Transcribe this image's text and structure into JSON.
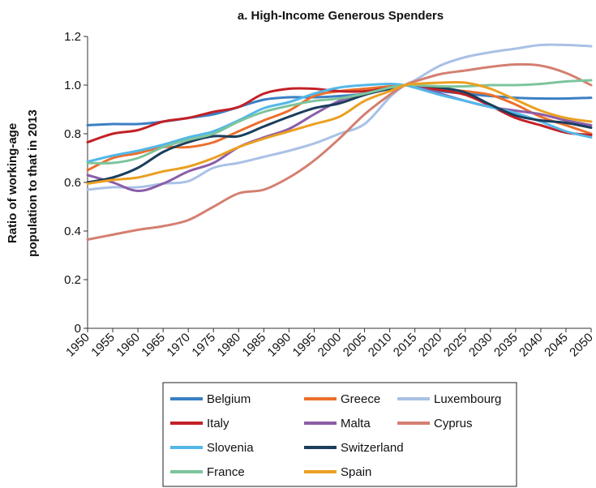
{
  "chart_data": {
    "type": "line",
    "title": "a. High-Income Generous Spenders",
    "xlabel": "",
    "ylabel": [
      "Ratio of working-age",
      "population to that in 2013"
    ],
    "xlim": [
      1950,
      2050
    ],
    "ylim": [
      0,
      1.2
    ],
    "x_ticks": [
      "1950",
      "1955",
      "1960",
      "1965",
      "1970",
      "1975",
      "1980",
      "1985",
      "1990",
      "1995",
      "2000",
      "2005",
      "2010",
      "2015",
      "2020",
      "2025",
      "2030",
      "2035",
      "2040",
      "2045",
      "2050"
    ],
    "y_ticks": [
      "0",
      "0.2",
      "0.4",
      "0.6",
      "0.8",
      "1.0",
      "1.2"
    ],
    "grid": false,
    "legend_position": "bottom",
    "x": [
      1950,
      1955,
      1960,
      1965,
      1970,
      1975,
      1980,
      1985,
      1990,
      1995,
      2000,
      2005,
      2010,
      2013,
      2015,
      2020,
      2025,
      2030,
      2035,
      2040,
      2045,
      2050
    ],
    "series": [
      {
        "name": "Belgium",
        "color": "#3b7fc4",
        "values": [
          0.835,
          0.84,
          0.84,
          0.85,
          0.865,
          0.88,
          0.91,
          0.94,
          0.95,
          0.95,
          0.955,
          0.965,
          0.99,
          1.0,
          0.99,
          0.975,
          0.965,
          0.955,
          0.948,
          0.945,
          0.945,
          0.948
        ]
      },
      {
        "name": "Greece",
        "color": "#ec6f2c",
        "values": [
          0.65,
          0.7,
          0.72,
          0.745,
          0.745,
          0.765,
          0.81,
          0.855,
          0.895,
          0.955,
          0.975,
          0.985,
          0.995,
          1.0,
          0.995,
          0.985,
          0.975,
          0.96,
          0.92,
          0.87,
          0.835,
          0.8
        ]
      },
      {
        "name": "Luxembourg",
        "color": "#a9c1e6",
        "values": [
          0.57,
          0.58,
          0.58,
          0.595,
          0.605,
          0.66,
          0.68,
          0.705,
          0.73,
          0.76,
          0.8,
          0.84,
          0.95,
          1.0,
          1.02,
          1.08,
          1.115,
          1.135,
          1.15,
          1.165,
          1.165,
          1.16
        ]
      },
      {
        "name": "Italy",
        "color": "#c32026",
        "values": [
          0.765,
          0.8,
          0.815,
          0.85,
          0.865,
          0.89,
          0.91,
          0.965,
          0.985,
          0.985,
          0.975,
          0.975,
          0.99,
          1.0,
          0.995,
          0.98,
          0.96,
          0.915,
          0.865,
          0.835,
          0.805,
          0.795
        ]
      },
      {
        "name": "Malta",
        "color": "#8b5da8",
        "values": [
          0.63,
          0.6,
          0.565,
          0.595,
          0.645,
          0.68,
          0.745,
          0.785,
          0.82,
          0.88,
          0.935,
          0.965,
          0.985,
          1.0,
          0.995,
          0.965,
          0.935,
          0.91,
          0.895,
          0.88,
          0.855,
          0.835
        ]
      },
      {
        "name": "Cyprus",
        "color": "#d47f70",
        "values": [
          0.365,
          0.385,
          0.405,
          0.42,
          0.445,
          0.5,
          0.555,
          0.57,
          0.62,
          0.69,
          0.78,
          0.88,
          0.96,
          1.0,
          1.015,
          1.045,
          1.06,
          1.075,
          1.085,
          1.08,
          1.05,
          1.0
        ]
      },
      {
        "name": "Slovenia",
        "color": "#52b8e8",
        "values": [
          0.685,
          0.71,
          0.73,
          0.755,
          0.785,
          0.81,
          0.855,
          0.905,
          0.93,
          0.965,
          0.99,
          1.0,
          1.005,
          1.0,
          0.99,
          0.96,
          0.935,
          0.91,
          0.885,
          0.85,
          0.81,
          0.785
        ]
      },
      {
        "name": "Switzerland",
        "color": "#1b3e5c",
        "values": [
          0.6,
          0.62,
          0.66,
          0.725,
          0.765,
          0.79,
          0.79,
          0.83,
          0.87,
          0.905,
          0.925,
          0.96,
          0.985,
          1.0,
          1.0,
          0.99,
          0.97,
          0.92,
          0.875,
          0.855,
          0.845,
          0.825
        ]
      },
      {
        "name": "France",
        "color": "#7dc49c",
        "values": [
          0.68,
          0.68,
          0.7,
          0.745,
          0.775,
          0.8,
          0.85,
          0.89,
          0.915,
          0.935,
          0.945,
          0.965,
          0.99,
          1.0,
          1.0,
          0.995,
          0.995,
          1.0,
          1.0,
          1.005,
          1.015,
          1.02
        ]
      },
      {
        "name": "Spain",
        "color": "#eba022",
        "values": [
          0.595,
          0.61,
          0.62,
          0.645,
          0.665,
          0.7,
          0.745,
          0.78,
          0.81,
          0.84,
          0.87,
          0.935,
          0.975,
          1.0,
          1.005,
          1.01,
          1.01,
          0.985,
          0.94,
          0.895,
          0.865,
          0.85
        ]
      }
    ],
    "legend_layout": [
      [
        "Belgium",
        "Greece",
        "Luxembourg"
      ],
      [
        "Italy",
        "Malta",
        "Cyprus"
      ],
      [
        "Slovenia",
        "Switzerland"
      ],
      [
        "France",
        "Spain"
      ]
    ]
  }
}
